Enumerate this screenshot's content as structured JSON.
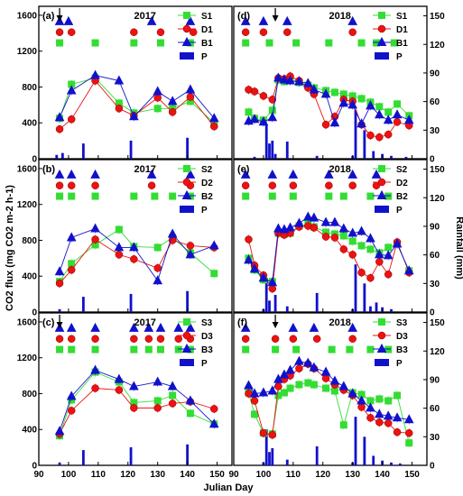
{
  "figure": {
    "xlabel": "Julian Day",
    "ylabel_left": "CO2 flux (mg CO2 m-2 h-1)",
    "ylabel_right": "Rainfall (mm)",
    "colors": {
      "S": "#33dd33",
      "D": "#ee1111",
      "B": "#1111cc",
      "P": "#1111cc"
    }
  },
  "chart_data": [
    {
      "panel": "(a)",
      "title": "2017",
      "type": "line",
      "xlim": [
        90,
        155
      ],
      "ylim": [
        0,
        1700
      ],
      "y2lim": [
        0,
        160
      ],
      "arrow_day": 97,
      "series": [
        {
          "name": "S1",
          "x": [
            97,
            101,
            109,
            117,
            122,
            130,
            135,
            141,
            149
          ],
          "y": [
            450,
            830,
            900,
            620,
            510,
            560,
            560,
            640,
            400
          ]
        },
        {
          "name": "D1",
          "x": [
            97,
            101,
            109,
            117,
            122,
            130,
            135,
            141,
            149
          ],
          "y": [
            330,
            440,
            870,
            560,
            480,
            680,
            520,
            690,
            360
          ]
        },
        {
          "name": "B1",
          "x": [
            97,
            101,
            109,
            117,
            122,
            130,
            135,
            141,
            149
          ],
          "y": [
            460,
            760,
            930,
            870,
            470,
            750,
            640,
            770,
            450
          ]
        }
      ],
      "markers": {
        "B": [
          97,
          100,
          128,
          141
        ],
        "D": [
          97,
          101,
          122,
          131,
          142
        ],
        "S": [
          97,
          109,
          122,
          131,
          141
        ]
      },
      "rain": {
        "x": [
          96,
          98,
          105,
          121,
          140
        ],
        "y": [
          4,
          6,
          16,
          19,
          22
        ]
      }
    },
    {
      "panel": "(d)",
      "title": "2018",
      "type": "line",
      "xlim": [
        90,
        155
      ],
      "ylim": [
        0,
        1700
      ],
      "y2lim": [
        0,
        160
      ],
      "arrow_day": 104,
      "series": [
        {
          "name": "S1",
          "x": [
            95,
            97,
            100,
            103,
            105,
            107,
            109,
            112,
            115,
            117,
            121,
            124,
            127,
            130,
            133,
            136,
            139,
            142,
            145,
            149
          ],
          "y": [
            520,
            450,
            430,
            540,
            880,
            860,
            870,
            850,
            820,
            790,
            760,
            740,
            720,
            700,
            670,
            630,
            580,
            520,
            610,
            480
          ]
        },
        {
          "name": "D1",
          "x": [
            95,
            97,
            100,
            103,
            105,
            107,
            109,
            112,
            115,
            117,
            121,
            124,
            127,
            130,
            133,
            136,
            139,
            142,
            145,
            149
          ],
          "y": [
            770,
            750,
            700,
            660,
            900,
            890,
            920,
            870,
            790,
            720,
            380,
            470,
            660,
            640,
            380,
            260,
            240,
            270,
            410,
            370
          ]
        },
        {
          "name": "B1",
          "x": [
            95,
            97,
            100,
            103,
            105,
            107,
            109,
            112,
            115,
            117,
            121,
            124,
            127,
            130,
            133,
            136,
            139,
            142,
            145,
            149
          ],
          "y": [
            420,
            440,
            410,
            460,
            900,
            880,
            870,
            860,
            840,
            770,
            720,
            400,
            620,
            600,
            390,
            590,
            490,
            430,
            490,
            430
          ]
        }
      ],
      "markers": {
        "B": [
          94,
          100,
          108,
          130
        ],
        "D": [
          94,
          100,
          108,
          130
        ],
        "S": [
          94,
          102,
          111,
          122,
          133,
          138,
          144
        ]
      },
      "rain": {
        "x": [
          97,
          101,
          102,
          103,
          104,
          108,
          118,
          130,
          131,
          134,
          137,
          140,
          143,
          148
        ],
        "y": [
          2,
          36,
          16,
          19,
          5,
          18,
          3,
          3,
          51,
          30,
          8,
          5,
          3,
          2
        ]
      }
    },
    {
      "panel": "(b)",
      "title": "2017",
      "type": "line",
      "xlim": [
        90,
        155
      ],
      "ylim": [
        0,
        1700
      ],
      "y2lim": [
        0,
        160
      ],
      "arrow_day": null,
      "series": [
        {
          "name": "S2",
          "x": [
            97,
            101,
            109,
            117,
            122,
            130,
            135,
            141,
            149
          ],
          "y": [
            340,
            540,
            750,
            920,
            730,
            720,
            830,
            660,
            430
          ]
        },
        {
          "name": "D2",
          "x": [
            97,
            101,
            109,
            117,
            122,
            130,
            135,
            141,
            149
          ],
          "y": [
            320,
            470,
            810,
            640,
            590,
            490,
            800,
            740,
            720
          ]
        },
        {
          "name": "B2",
          "x": [
            97,
            101,
            109,
            117,
            122,
            130,
            135,
            141,
            149
          ],
          "y": [
            450,
            830,
            930,
            720,
            720,
            350,
            870,
            640,
            740
          ]
        }
      ],
      "markers": {
        "B": [
          97,
          101,
          109,
          128,
          141
        ],
        "D": [
          97,
          101,
          109,
          128,
          141
        ],
        "S": [
          97,
          101,
          109,
          122,
          129,
          135,
          141
        ]
      },
      "rain": {
        "x": [
          97,
          105,
          121,
          140
        ],
        "y": [
          3,
          16,
          19,
          22
        ]
      }
    },
    {
      "panel": "(e)",
      "title": "2018",
      "type": "line",
      "xlim": [
        90,
        155
      ],
      "ylim": [
        0,
        1700
      ],
      "y2lim": [
        0,
        160
      ],
      "arrow_day": null,
      "series": [
        {
          "name": "S2",
          "x": [
            95,
            97,
            100,
            103,
            105,
            107,
            109,
            112,
            115,
            117,
            121,
            124,
            127,
            130,
            133,
            136,
            139,
            142,
            145,
            149
          ],
          "y": [
            600,
            470,
            360,
            340,
            880,
            870,
            880,
            960,
            980,
            950,
            890,
            870,
            850,
            790,
            740,
            700,
            660,
            720,
            760,
            460
          ]
        },
        {
          "name": "D2",
          "x": [
            95,
            97,
            100,
            103,
            105,
            107,
            109,
            112,
            115,
            117,
            121,
            124,
            127,
            130,
            133,
            136,
            139,
            142,
            145,
            149
          ],
          "y": [
            810,
            520,
            410,
            260,
            880,
            860,
            880,
            950,
            960,
            940,
            840,
            830,
            700,
            640,
            440,
            380,
            560,
            420,
            780,
            440
          ]
        },
        {
          "name": "B2",
          "x": [
            95,
            97,
            100,
            103,
            105,
            107,
            109,
            112,
            115,
            117,
            121,
            124,
            127,
            130,
            133,
            136,
            139,
            142,
            145,
            149
          ],
          "y": [
            580,
            480,
            380,
            330,
            930,
            920,
            940,
            990,
            1060,
            1050,
            1000,
            1000,
            930,
            880,
            900,
            820,
            640,
            630,
            760,
            460
          ]
        }
      ],
      "markers": {
        "B": [
          94,
          103,
          110,
          122,
          130,
          138
        ],
        "D": [
          94,
          103,
          110,
          122,
          130,
          138
        ],
        "S": [
          94,
          103,
          110,
          122,
          127,
          136,
          142
        ]
      },
      "rain": {
        "x": [
          100,
          101,
          102,
          104,
          108,
          118,
          130,
          131,
          134,
          136,
          138,
          140,
          143
        ],
        "y": [
          3,
          36,
          12,
          18,
          6,
          20,
          3,
          50,
          30,
          6,
          10,
          5,
          3
        ]
      }
    },
    {
      "panel": "(c)",
      "title": "2017",
      "type": "line",
      "xlim": [
        90,
        155
      ],
      "ylim": [
        0,
        1700
      ],
      "y2lim": [
        0,
        160
      ],
      "arrow_day": 97,
      "series": [
        {
          "name": "S3",
          "x": [
            97,
            101,
            109,
            117,
            122,
            130,
            135,
            141,
            149
          ],
          "y": [
            330,
            730,
            1040,
            930,
            700,
            720,
            780,
            580,
            460
          ]
        },
        {
          "name": "D3",
          "x": [
            97,
            101,
            109,
            117,
            122,
            130,
            135,
            141,
            149
          ],
          "y": [
            350,
            610,
            860,
            840,
            640,
            640,
            690,
            710,
            630
          ]
        },
        {
          "name": "B3",
          "x": [
            97,
            101,
            109,
            117,
            122,
            130,
            135,
            141,
            149
          ],
          "y": [
            380,
            770,
            1060,
            960,
            880,
            930,
            880,
            720,
            460
          ]
        }
      ],
      "markers": {
        "B": [
          97,
          101,
          109,
          122,
          127,
          131,
          137,
          141
        ],
        "D": [
          97,
          101,
          109,
          122,
          127,
          131,
          137,
          141
        ],
        "S": [
          97,
          101,
          109,
          122,
          127,
          131,
          137,
          141
        ]
      },
      "rain": {
        "x": [
          97,
          105,
          121,
          140
        ],
        "y": [
          3,
          16,
          19,
          22
        ]
      }
    },
    {
      "panel": "(f)",
      "title": "2018",
      "type": "line",
      "xlim": [
        90,
        155
      ],
      "ylim": [
        0,
        1700
      ],
      "y2lim": [
        0,
        160
      ],
      "arrow_day": 104,
      "series": [
        {
          "name": "S3",
          "x": [
            95,
            97,
            100,
            103,
            105,
            107,
            109,
            112,
            115,
            117,
            121,
            124,
            127,
            130,
            133,
            136,
            139,
            142,
            145,
            149
          ],
          "y": [
            810,
            570,
            360,
            350,
            780,
            810,
            860,
            900,
            920,
            900,
            860,
            830,
            450,
            810,
            790,
            720,
            740,
            720,
            780,
            250
          ]
        },
        {
          "name": "D3",
          "x": [
            95,
            97,
            100,
            103,
            105,
            107,
            109,
            112,
            115,
            117,
            121,
            124,
            127,
            130,
            133,
            136,
            139,
            142,
            145,
            149
          ],
          "y": [
            800,
            720,
            360,
            340,
            880,
            960,
            1000,
            1080,
            1130,
            1080,
            970,
            900,
            840,
            780,
            650,
            530,
            480,
            470,
            370,
            360
          ]
        },
        {
          "name": "B3",
          "x": [
            95,
            97,
            100,
            103,
            105,
            107,
            109,
            112,
            115,
            117,
            121,
            124,
            127,
            130,
            133,
            136,
            139,
            142,
            145,
            149
          ],
          "y": [
            890,
            800,
            810,
            830,
            960,
            1010,
            1060,
            1160,
            1140,
            1090,
            1040,
            940,
            880,
            800,
            720,
            640,
            570,
            550,
            530,
            510
          ]
        }
      ],
      "markers": {
        "B": [
          94,
          110,
          117,
          130
        ],
        "D": [
          94,
          104,
          110,
          118,
          130
        ],
        "S": [
          94,
          104,
          111,
          123,
          129,
          136,
          142
        ]
      },
      "rain": {
        "x": [
          100,
          101,
          102,
          103,
          108,
          118,
          130,
          131,
          134,
          137,
          140,
          143,
          146
        ],
        "y": [
          3,
          38,
          14,
          18,
          6,
          20,
          3,
          51,
          30,
          10,
          5,
          3,
          2
        ]
      }
    }
  ]
}
